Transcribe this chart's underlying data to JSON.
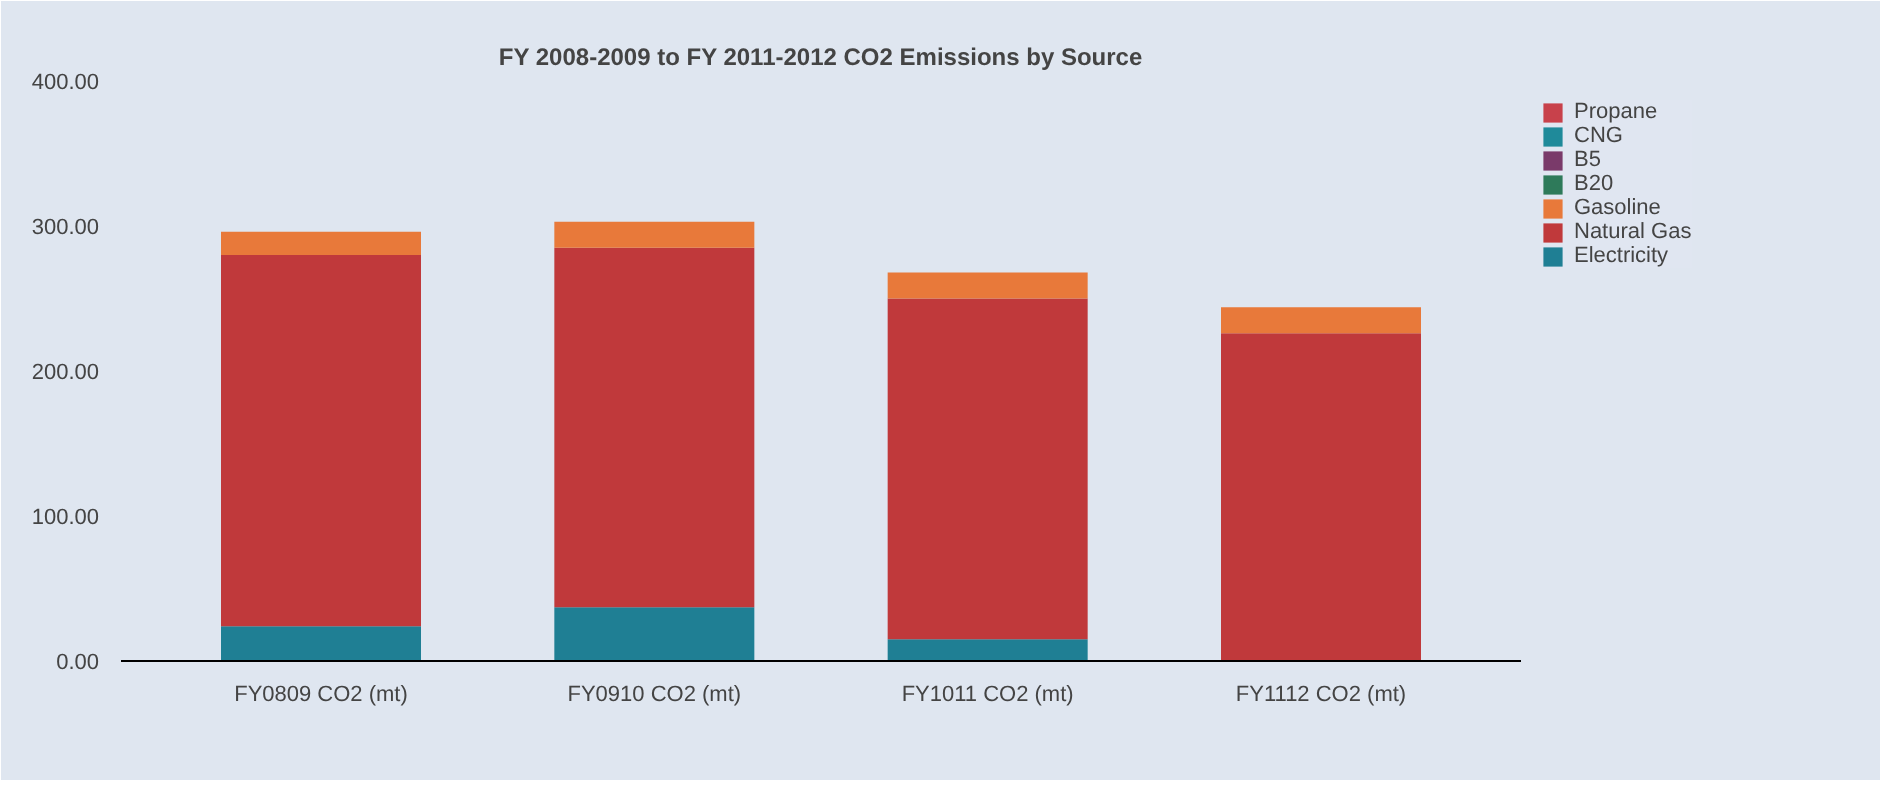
{
  "chart_data": {
    "type": "bar",
    "stacked": true,
    "title": "FY 2008-2009 to FY 2011-2012 CO2 Emissions by Source",
    "categories": [
      "FY0809 CO2 (mt)",
      "FY0910 CO2 (mt)",
      "FY1011 CO2 (mt)",
      "FY1112 CO2 (mt)"
    ],
    "series": [
      {
        "name": "Electricity",
        "color": "#1f7f94",
        "values": [
          24,
          37,
          15,
          0
        ]
      },
      {
        "name": "Natural Gas",
        "color": "#c0393b",
        "values": [
          256,
          248,
          235,
          226
        ]
      },
      {
        "name": "Gasoline",
        "color": "#e8793a",
        "values": [
          16,
          18,
          18,
          18
        ]
      },
      {
        "name": "B20",
        "color": "#2e7a5a",
        "values": [
          0,
          0,
          0,
          0
        ]
      },
      {
        "name": "B5",
        "color": "#7a3a6a",
        "values": [
          0,
          0,
          0,
          0
        ]
      },
      {
        "name": "CNG",
        "color": "#1f8a9a",
        "values": [
          0,
          0,
          0,
          0
        ]
      },
      {
        "name": "Propane",
        "color": "#c8414b",
        "values": [
          0,
          0,
          0,
          0
        ]
      }
    ],
    "ylim": [
      0,
      400
    ],
    "yticks": [
      {
        "value": 0,
        "label": "0.00"
      },
      {
        "value": 100,
        "label": "100.00"
      },
      {
        "value": 200,
        "label": "200.00"
      },
      {
        "value": 300,
        "label": "300.00"
      },
      {
        "value": 400,
        "label": "400.00"
      }
    ],
    "grid": false,
    "legend": "right"
  }
}
